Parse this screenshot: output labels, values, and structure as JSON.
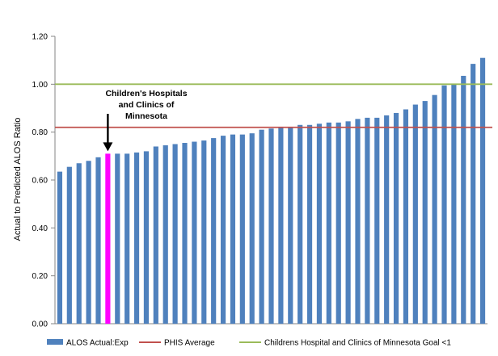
{
  "chart_data": {
    "type": "bar",
    "ylabel": "Actual to Predicted ALOS Ratio",
    "ylim": [
      0,
      1.2
    ],
    "yticks": [
      "0.00",
      "0.20",
      "0.40",
      "0.60",
      "0.80",
      "1.00",
      "1.20"
    ],
    "grid": false,
    "legend_position": "bottom",
    "series": [
      {
        "name": "ALOS Actual:Exp",
        "color": "#4f81bd",
        "values": [
          0.635,
          0.655,
          0.67,
          0.68,
          0.695,
          0.71,
          0.71,
          0.71,
          0.715,
          0.72,
          0.74,
          0.745,
          0.75,
          0.755,
          0.76,
          0.765,
          0.775,
          0.785,
          0.79,
          0.79,
          0.795,
          0.81,
          0.815,
          0.82,
          0.82,
          0.83,
          0.83,
          0.835,
          0.84,
          0.84,
          0.845,
          0.855,
          0.86,
          0.86,
          0.87,
          0.88,
          0.895,
          0.915,
          0.93,
          0.955,
          0.995,
          1.0,
          1.035,
          1.085,
          1.11
        ]
      }
    ],
    "highlight": {
      "index": 5,
      "color": "#ff00ff"
    },
    "reference_lines": [
      {
        "name": "PHIS Average",
        "value": 0.82,
        "color": "#c0504d"
      },
      {
        "name": "Childrens Hospital and Clinics of Minnesota Goal <1",
        "value": 1.0,
        "color": "#9bbb59"
      }
    ],
    "annotation": {
      "lines": [
        "Children's Hospitals",
        "and Clinics of",
        "Minnesota"
      ],
      "target_index": 5
    }
  }
}
